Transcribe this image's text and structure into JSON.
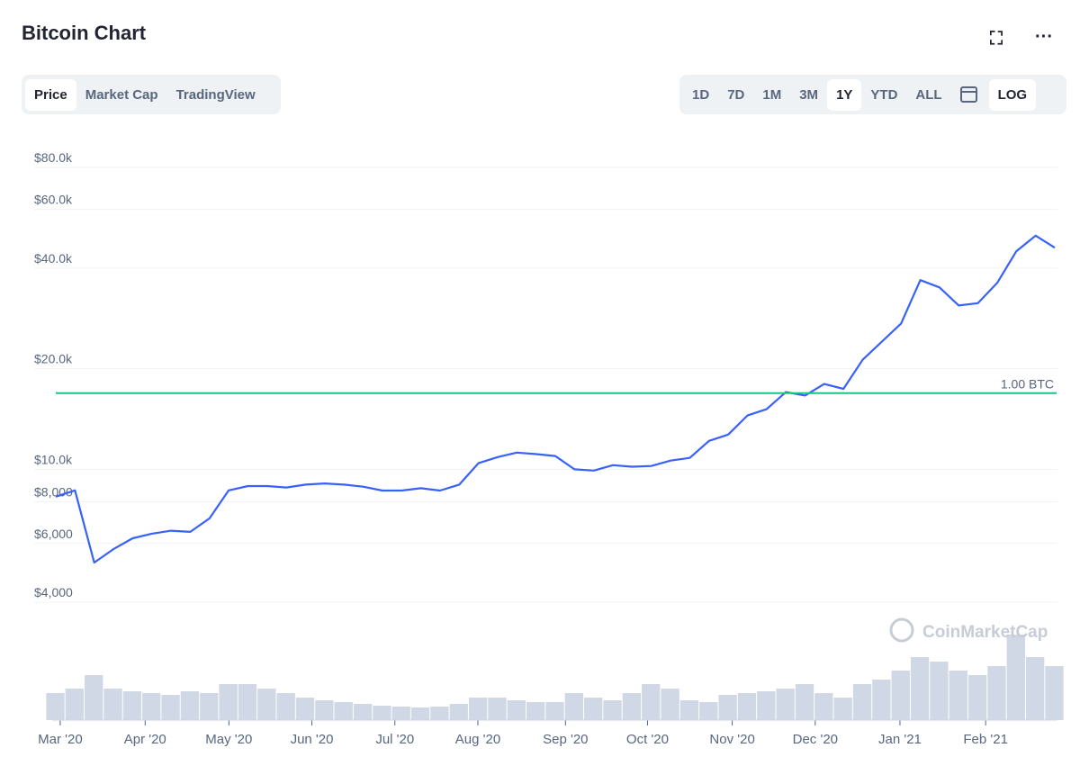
{
  "header": {
    "title": "Bitcoin Chart"
  },
  "tabs": {
    "items": [
      "Price",
      "Market Cap",
      "TradingView"
    ],
    "active": 0
  },
  "ranges": {
    "items": [
      "1D",
      "7D",
      "1M",
      "3M",
      "1Y",
      "YTD",
      "ALL"
    ],
    "active": 4
  },
  "log_button": "LOG",
  "watermark": "CoinMarketCap",
  "chart_data": {
    "type": "line",
    "log_scale": true,
    "grid": true,
    "color": "#3861fb",
    "values": [
      8280,
      8650,
      5260,
      5770,
      6220,
      6420,
      6550,
      6500,
      7130,
      8650,
      8910,
      8910,
      8820,
      9000,
      9070,
      9000,
      8870,
      8640,
      8640,
      8780,
      8640,
      9000,
      10430,
      10880,
      11220,
      11100,
      10960,
      10000,
      9910,
      10290,
      10180,
      10230,
      10620,
      10820,
      12160,
      12700,
      14490,
      15130,
      17020,
      16620,
      18000,
      17400,
      21270,
      24100,
      27300,
      36800,
      35000,
      30900,
      31400,
      36100,
      44900,
      50000,
      46000
    ],
    "xlim": [
      0,
      52
    ],
    "xticks": [
      {
        "value": 0.23,
        "label": "Mar '20"
      },
      {
        "value": 4.65,
        "label": "Apr '20"
      },
      {
        "value": 9.01,
        "label": "May '20"
      },
      {
        "value": 13.33,
        "label": "Jun '20"
      },
      {
        "value": 17.65,
        "label": "Jul '20"
      },
      {
        "value": 21.97,
        "label": "Aug '20"
      },
      {
        "value": 26.53,
        "label": "Sep '20"
      },
      {
        "value": 30.8,
        "label": "Oct '20"
      },
      {
        "value": 35.21,
        "label": "Nov '20"
      },
      {
        "value": 39.53,
        "label": "Dec '20"
      },
      {
        "value": 43.94,
        "label": "Jan '21"
      },
      {
        "value": 48.4,
        "label": "Feb '21"
      }
    ],
    "ylim": [
      3740,
      100000
    ],
    "yticks": [
      {
        "value": 4000,
        "label": "$4,000"
      },
      {
        "value": 6000,
        "label": "$6,000"
      },
      {
        "value": 8000,
        "label": "$8,000"
      },
      {
        "value": 10000,
        "label": "$10.0k"
      },
      {
        "value": 20000,
        "label": "$20.0k"
      },
      {
        "value": 40000,
        "label": "$40.0k"
      },
      {
        "value": 60000,
        "label": "$60.0k"
      },
      {
        "value": 80000,
        "label": "$80.0k"
      }
    ],
    "reference_line": {
      "value": 16900,
      "label": "1.00 BTC",
      "color": "#16c784"
    },
    "volume": {
      "color": "#d1d8e5",
      "ylim": [
        0,
        110
      ],
      "values": [
        30,
        35,
        50,
        35,
        32,
        30,
        28,
        32,
        30,
        40,
        40,
        35,
        30,
        25,
        22,
        20,
        18,
        16,
        15,
        14,
        15,
        18,
        25,
        25,
        22,
        20,
        20,
        30,
        25,
        22,
        30,
        40,
        35,
        22,
        20,
        28,
        30,
        32,
        35,
        40,
        30,
        25,
        40,
        45,
        55,
        70,
        65,
        55,
        50,
        60,
        95,
        70,
        60
      ]
    }
  }
}
